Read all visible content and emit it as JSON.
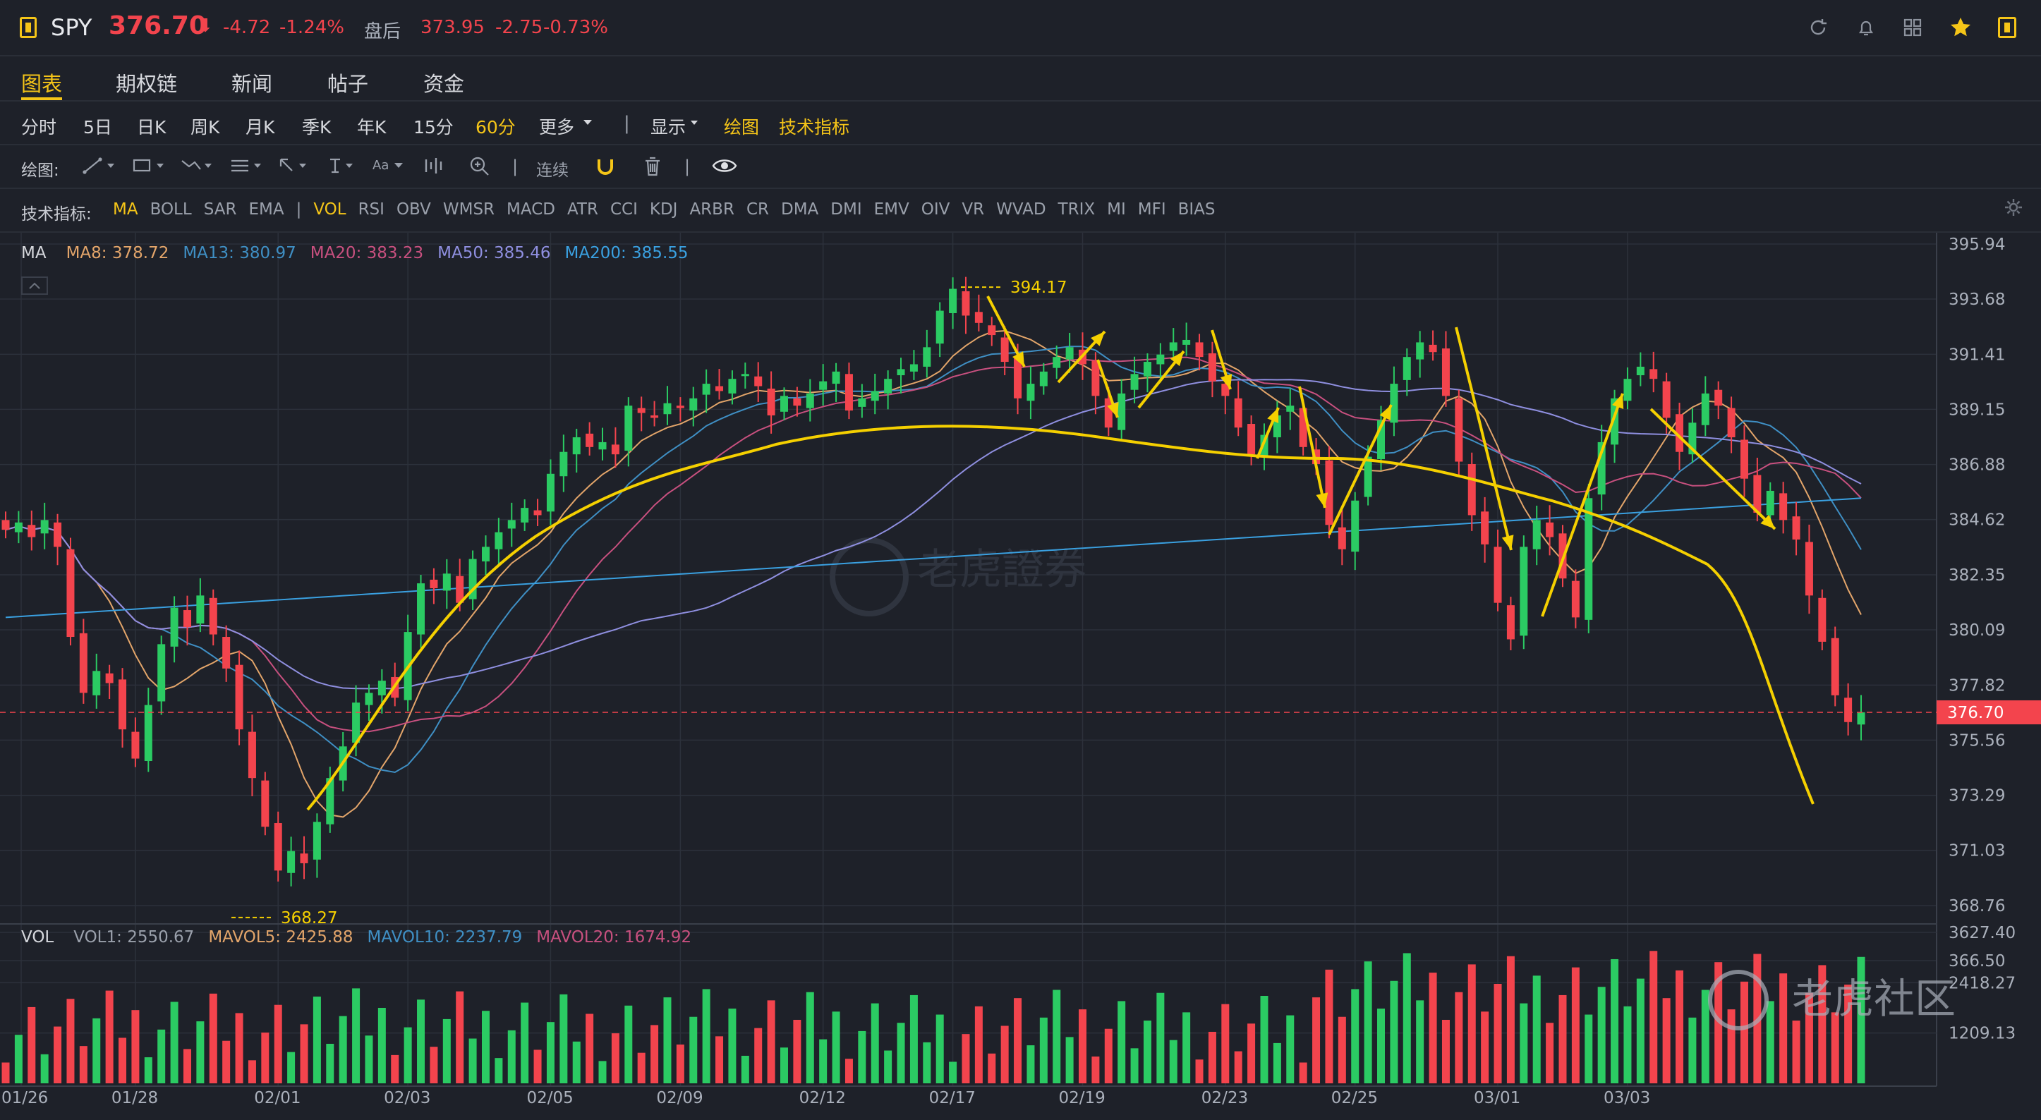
{
  "header": {
    "symbol": "SPY",
    "price": "376.70",
    "arrow": "⬇",
    "change": "-4.72",
    "change_pct": "-1.24%",
    "after_label": "盘后",
    "after_price": "373.95",
    "after_change": "-2.75",
    "after_change_pct": "-0.73%",
    "icons": [
      "refresh-icon",
      "bell-icon",
      "grid-icon",
      "star-icon",
      "window-icon"
    ]
  },
  "tabs": [
    {
      "label": "图表",
      "active": true
    },
    {
      "label": "期权链",
      "active": false
    },
    {
      "label": "新闻",
      "active": false
    },
    {
      "label": "帖子",
      "active": false
    },
    {
      "label": "资金",
      "active": false
    }
  ],
  "periods": {
    "items": [
      "分时",
      "5日",
      "日K",
      "周K",
      "月K",
      "季K",
      "年K",
      "15分",
      "60分",
      "更多"
    ],
    "selected": "60分",
    "show_label": "显示",
    "draw_label": "绘图",
    "indicator_label": "技术指标"
  },
  "drawing_toolbar": {
    "label": "绘图:",
    "continuous_label": "连续",
    "tools": [
      "trendline-icon",
      "rectangle-icon",
      "fib-icon",
      "channel-icon",
      "arrow-cursor-icon",
      "text-cursor-icon",
      "font-icon",
      "bars-icon",
      "zoom-icon",
      "magnet-icon",
      "trash-icon",
      "eye-icon"
    ]
  },
  "indicators": {
    "label": "技术指标:",
    "items": [
      "MA",
      "BOLL",
      "SAR",
      "EMA",
      "|",
      "VOL",
      "RSI",
      "OBV",
      "WMSR",
      "MACD",
      "ATR",
      "CCI",
      "KDJ",
      "ARBR",
      "CR",
      "DMA",
      "DMI",
      "EMV",
      "OIV",
      "VR",
      "WVAD",
      "TRIX",
      "MI",
      "MFI",
      "BIAS"
    ],
    "active_main": "MA",
    "active_sub": "VOL"
  },
  "ma_legend": {
    "label": "MA",
    "items": [
      {
        "text": "MA8: 378.72",
        "color": "#e3a56a"
      },
      {
        "text": "MA13: 380.97",
        "color": "#3f8fc4"
      },
      {
        "text": "MA20: 383.23",
        "color": "#c8507f"
      },
      {
        "text": "MA50: 385.46",
        "color": "#8f8fe0"
      },
      {
        "text": "MA200: 385.55",
        "color": "#3aa0e0"
      }
    ]
  },
  "vol_legend": {
    "label": "VOL",
    "items": [
      {
        "text": "VOL1: 2550.67",
        "color": "#9aa0ab"
      },
      {
        "text": "MAVOL5: 2425.88",
        "color": "#e3a56a"
      },
      {
        "text": "MAVOL10: 2237.79",
        "color": "#3f8fc4"
      },
      {
        "text": "MAVOL20: 1674.92",
        "color": "#c8507f"
      }
    ]
  },
  "colors": {
    "up": "#2bcb63",
    "down": "#f3444d",
    "annotation": "#f5d000",
    "grid": "#2c313b"
  },
  "chart_data": {
    "type": "candlestick",
    "price_axis": [
      "395.94",
      "393.68",
      "391.41",
      "389.15",
      "386.88",
      "384.62",
      "382.35",
      "380.09",
      "377.82",
      "375.56",
      "373.29",
      "371.03",
      "368.76",
      "366.50"
    ],
    "current_price": "376.70",
    "price_range": [
      366.5,
      395.94
    ],
    "volume_axis": [
      "3627.40",
      "2418.27",
      "1209.13"
    ],
    "volume_max": 3627.4,
    "x_labels": [
      "01/26",
      "01/28",
      "02/01",
      "02/03",
      "02/05",
      "02/09",
      "02/12",
      "02/17",
      "02/19",
      "02/23",
      "02/25",
      "03/01",
      "03/03"
    ],
    "annotations": [
      {
        "text": "394.17",
        "value": 394.17
      },
      {
        "text": "368.27",
        "value": 368.27
      }
    ],
    "close_series": [
      384.2,
      384.5,
      383.9,
      384.6,
      383.5,
      379.8,
      377.5,
      378.4,
      377.9,
      376.0,
      374.8,
      377.0,
      379.5,
      381.0,
      380.2,
      381.5,
      379.9,
      378.5,
      376.0,
      374.0,
      372.0,
      370.2,
      371.0,
      370.5,
      372.2,
      374.0,
      375.3,
      377.1,
      377.5,
      378.0,
      377.3,
      380.0,
      382.0,
      381.8,
      382.4,
      381.2,
      383.0,
      383.5,
      384.1,
      384.6,
      385.1,
      384.8,
      386.5,
      387.4,
      388.0,
      387.6,
      387.8,
      387.3,
      389.3,
      389.0,
      388.8,
      389.4,
      389.2,
      389.6,
      390.2,
      389.9,
      390.4,
      390.6,
      390.1,
      388.9,
      389.7,
      389.3,
      389.8,
      390.3,
      390.7,
      389.1,
      389.6,
      389.9,
      390.4,
      390.8,
      391.0,
      391.7,
      393.2,
      394.1,
      393.0,
      392.7,
      392.2,
      391.1,
      389.6,
      390.2,
      390.7,
      391.3,
      391.7,
      391.0,
      389.7,
      388.4,
      389.8,
      390.6,
      391.1,
      391.4,
      391.9,
      392.0,
      391.3,
      390.3,
      389.7,
      388.4,
      387.3,
      388.1,
      388.9,
      389.3,
      387.6,
      386.9,
      384.4,
      383.4,
      385.4,
      387.2,
      388.7,
      390.2,
      391.3,
      391.9,
      391.5,
      389.7,
      387.0,
      384.8,
      383.6,
      381.2,
      379.7,
      383.5,
      384.6,
      383.9,
      382.2,
      380.6,
      385.5,
      387.8,
      389.6,
      390.4,
      390.9,
      390.4,
      388.8,
      387.4,
      388.6,
      389.8,
      389.3,
      388.0,
      386.3,
      384.9,
      385.8,
      384.6,
      383.8,
      381.5,
      379.6,
      377.4,
      376.3,
      376.7
    ]
  }
}
